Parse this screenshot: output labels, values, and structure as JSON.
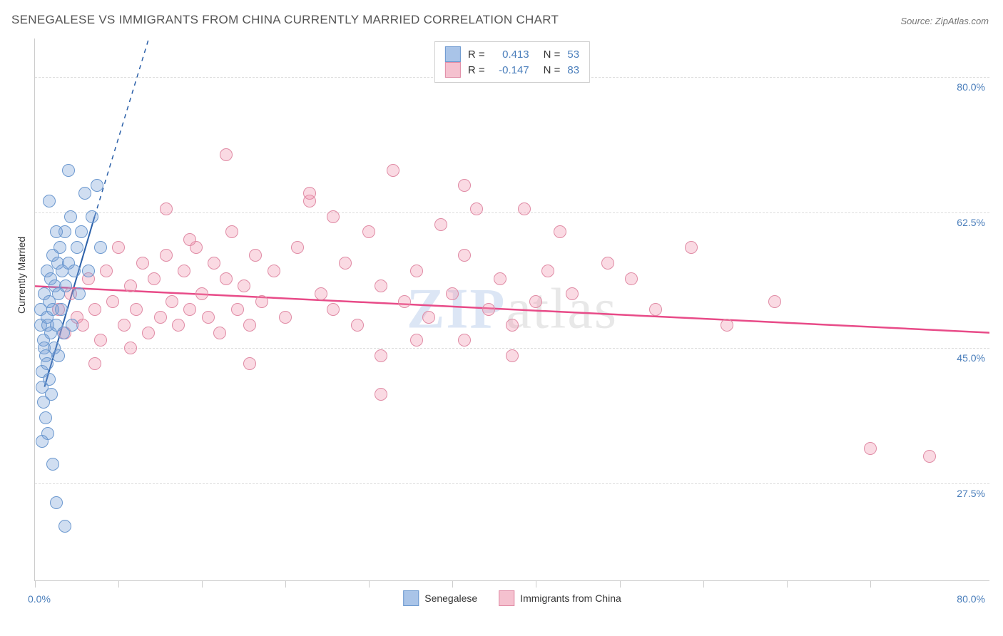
{
  "title": "SENEGALESE VS IMMIGRANTS FROM CHINA CURRENTLY MARRIED CORRELATION CHART",
  "source_label": "Source: ZipAtlas.com",
  "ylabel": "Currently Married",
  "watermark": {
    "part1": "ZIP",
    "part2": "atlas"
  },
  "axes": {
    "xmin": 0,
    "xmax": 80,
    "ymin": 15,
    "ymax": 85,
    "x_label_min": "0.0%",
    "x_label_max": "80.0%",
    "label_color": "#4a7ebb",
    "yticks": [
      {
        "value": 27.5,
        "label": "27.5%"
      },
      {
        "value": 45.0,
        "label": "45.0%"
      },
      {
        "value": 62.5,
        "label": "62.5%"
      },
      {
        "value": 80.0,
        "label": "80.0%"
      }
    ],
    "xtick_positions": [
      0,
      7,
      14,
      21,
      28,
      35,
      42,
      49,
      56,
      63,
      70
    ]
  },
  "series": {
    "senegalese": {
      "label": "Senegalese",
      "fill": "rgba(120,160,215,0.35)",
      "stroke": "#6b98cf",
      "swatch_fill": "#a9c4e8",
      "swatch_border": "#6b98cf",
      "trend": {
        "x1": 0.8,
        "y1": 40,
        "x2": 5,
        "y2": 62,
        "x2_dash": 12.5,
        "y2_dash": 100,
        "color": "#2a5fa8",
        "width": 2
      },
      "points": [
        [
          0.5,
          48
        ],
        [
          0.5,
          50
        ],
        [
          0.6,
          40
        ],
        [
          0.6,
          42
        ],
        [
          0.7,
          46
        ],
        [
          0.7,
          38
        ],
        [
          0.8,
          52
        ],
        [
          0.8,
          45
        ],
        [
          0.9,
          44
        ],
        [
          0.9,
          36
        ],
        [
          1.0,
          55
        ],
        [
          1.0,
          49
        ],
        [
          1.0,
          43
        ],
        [
          1.1,
          34
        ],
        [
          1.1,
          48
        ],
        [
          1.2,
          51
        ],
        [
          1.2,
          41
        ],
        [
          1.3,
          54
        ],
        [
          1.3,
          47
        ],
        [
          1.4,
          39
        ],
        [
          1.5,
          57
        ],
        [
          1.5,
          50
        ],
        [
          1.6,
          45
        ],
        [
          1.7,
          53
        ],
        [
          1.8,
          48
        ],
        [
          1.8,
          25
        ],
        [
          1.9,
          56
        ],
        [
          2.0,
          52
        ],
        [
          2.0,
          44
        ],
        [
          2.1,
          58
        ],
        [
          2.2,
          50
        ],
        [
          2.3,
          55
        ],
        [
          2.4,
          47
        ],
        [
          2.5,
          60
        ],
        [
          2.6,
          53
        ],
        [
          2.8,
          56
        ],
        [
          3.0,
          62
        ],
        [
          3.1,
          48
        ],
        [
          3.3,
          55
        ],
        [
          3.5,
          58
        ],
        [
          3.7,
          52
        ],
        [
          3.9,
          60
        ],
        [
          4.2,
          65
        ],
        [
          4.5,
          55
        ],
        [
          4.8,
          62
        ],
        [
          5.2,
          66
        ],
        [
          5.5,
          58
        ],
        [
          2.8,
          68
        ],
        [
          1.5,
          30
        ],
        [
          0.6,
          33
        ],
        [
          2.5,
          22
        ],
        [
          1.2,
          64
        ],
        [
          1.8,
          60
        ]
      ]
    },
    "china": {
      "label": "Immigrants from China",
      "fill": "rgba(240,150,175,0.35)",
      "stroke": "#e08ba5",
      "swatch_fill": "#f5c1cf",
      "swatch_border": "#e08ba5",
      "trend": {
        "x1": 0,
        "y1": 53,
        "x2": 80,
        "y2": 47,
        "color": "#e84b88",
        "width": 2.5
      },
      "points": [
        [
          2,
          50
        ],
        [
          2.5,
          47
        ],
        [
          3,
          52
        ],
        [
          3.5,
          49
        ],
        [
          4,
          48
        ],
        [
          4.5,
          54
        ],
        [
          5,
          50
        ],
        [
          5.5,
          46
        ],
        [
          6,
          55
        ],
        [
          6.5,
          51
        ],
        [
          7,
          58
        ],
        [
          7.5,
          48
        ],
        [
          8,
          53
        ],
        [
          8.5,
          50
        ],
        [
          9,
          56
        ],
        [
          9.5,
          47
        ],
        [
          10,
          54
        ],
        [
          10.5,
          49
        ],
        [
          11,
          57
        ],
        [
          11.5,
          51
        ],
        [
          12,
          48
        ],
        [
          12.5,
          55
        ],
        [
          13,
          50
        ],
        [
          13.5,
          58
        ],
        [
          14,
          52
        ],
        [
          14.5,
          49
        ],
        [
          15,
          56
        ],
        [
          15.5,
          47
        ],
        [
          16,
          54
        ],
        [
          16.5,
          60
        ],
        [
          17,
          50
        ],
        [
          17.5,
          53
        ],
        [
          18,
          48
        ],
        [
          18.5,
          57
        ],
        [
          19,
          51
        ],
        [
          20,
          55
        ],
        [
          21,
          49
        ],
        [
          22,
          58
        ],
        [
          23,
          64
        ],
        [
          24,
          52
        ],
        [
          25,
          50
        ],
        [
          26,
          56
        ],
        [
          27,
          48
        ],
        [
          28,
          60
        ],
        [
          29,
          53
        ],
        [
          30,
          68
        ],
        [
          31,
          51
        ],
        [
          32,
          55
        ],
        [
          33,
          49
        ],
        [
          34,
          61
        ],
        [
          35,
          52
        ],
        [
          36,
          57
        ],
        [
          37,
          63
        ],
        [
          38,
          50
        ],
        [
          39,
          54
        ],
        [
          40,
          48
        ],
        [
          41,
          63
        ],
        [
          42,
          51
        ],
        [
          43,
          55
        ],
        [
          44,
          60
        ],
        [
          5,
          43
        ],
        [
          8,
          45
        ],
        [
          13,
          59
        ],
        [
          16,
          70
        ],
        [
          23,
          65
        ],
        [
          29,
          44
        ],
        [
          36,
          66
        ],
        [
          40,
          44
        ],
        [
          11,
          63
        ],
        [
          18,
          43
        ],
        [
          25,
          62
        ],
        [
          32,
          46
        ],
        [
          50,
          54
        ],
        [
          52,
          50
        ],
        [
          55,
          58
        ],
        [
          58,
          48
        ],
        [
          29,
          39
        ],
        [
          36,
          46
        ],
        [
          70,
          32
        ],
        [
          75,
          31
        ],
        [
          45,
          52
        ],
        [
          48,
          56
        ],
        [
          62,
          51
        ]
      ]
    }
  },
  "stats": [
    {
      "swatch": "senegalese",
      "r_label": "R =",
      "r_value": "0.413",
      "n_label": "N =",
      "n_value": "53"
    },
    {
      "swatch": "china",
      "r_label": "R =",
      "r_value": "-0.147",
      "n_label": "N =",
      "n_value": "83"
    }
  ],
  "stat_value_color": "#4a7ebb",
  "stat_label_color": "#333333"
}
